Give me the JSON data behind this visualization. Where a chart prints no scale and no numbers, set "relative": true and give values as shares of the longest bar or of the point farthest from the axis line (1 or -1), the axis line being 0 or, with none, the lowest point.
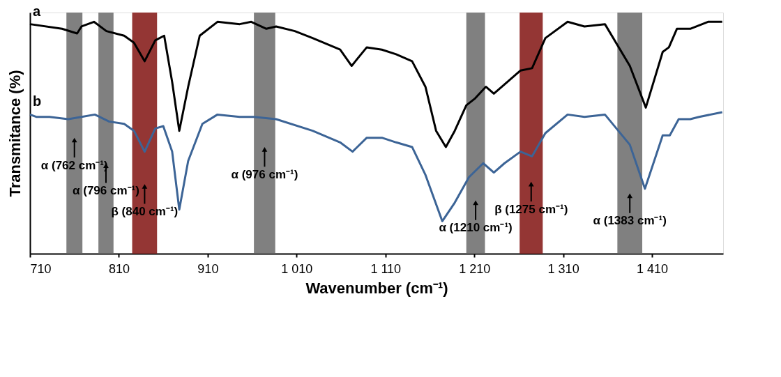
{
  "chart_data": {
    "type": "line",
    "relative": true,
    "xlabel": "Wavenumber (cm⁻¹)",
    "ylabel": "Transmitance (%)",
    "xlim": [
      710,
      1490
    ],
    "xticks": [
      710,
      810,
      910,
      {
        "value": 1010,
        "label": "1 010"
      },
      {
        "value": 1110,
        "label": "1 110"
      },
      {
        "value": 1210,
        "label": "1 210"
      },
      {
        "value": 1310,
        "label": "1 310"
      },
      {
        "value": 1410,
        "label": "1 410"
      }
    ],
    "grid": false,
    "marker": "none",
    "line_style": "solid",
    "series": [
      {
        "name": "a",
        "color": "#000000",
        "x": [
          710,
          746,
          763,
          768,
          782,
          796,
          816,
          827,
          839,
          851,
          861,
          870,
          878,
          888,
          901,
          921,
          946,
          959,
          976,
          987,
          1008,
          1028,
          1059,
          1072,
          1089,
          1106,
          1122,
          1140,
          1155,
          1167,
          1178,
          1188,
          1201,
          1211,
          1223,
          1232,
          1244,
          1262,
          1275,
          1290,
          1315,
          1334,
          1357,
          1385,
          1403,
          1422,
          1429,
          1438,
          1453,
          1473,
          1489
        ],
        "values": [
          0.99,
          0.97,
          0.95,
          0.98,
          1.0,
          0.96,
          0.94,
          0.91,
          0.83,
          0.92,
          0.94,
          0.74,
          0.53,
          0.72,
          0.94,
          1.0,
          0.99,
          1.0,
          0.97,
          0.98,
          0.96,
          0.93,
          0.88,
          0.81,
          0.89,
          0.88,
          0.86,
          0.83,
          0.72,
          0.53,
          0.46,
          0.53,
          0.64,
          0.67,
          0.72,
          0.69,
          0.73,
          0.79,
          0.8,
          0.93,
          1.0,
          0.98,
          0.99,
          0.81,
          0.63,
          0.87,
          0.89,
          0.97,
          0.97,
          1.0,
          1.0
        ]
      },
      {
        "name": "b",
        "color": "#3c6496",
        "x": [
          710,
          717,
          732,
          753,
          768,
          783,
          799,
          816,
          827,
          839,
          851,
          860,
          870,
          878,
          888,
          904,
          921,
          946,
          962,
          987,
          1028,
          1059,
          1073,
          1089,
          1106,
          1122,
          1140,
          1155,
          1174,
          1188,
          1204,
          1220,
          1232,
          1244,
          1262,
          1275,
          1290,
          1315,
          1334,
          1357,
          1385,
          1402,
          1422,
          1430,
          1440,
          1453,
          1463,
          1489
        ],
        "values": [
          0.6,
          0.59,
          0.59,
          0.58,
          0.59,
          0.6,
          0.57,
          0.56,
          0.53,
          0.44,
          0.54,
          0.55,
          0.44,
          0.19,
          0.4,
          0.56,
          0.6,
          0.59,
          0.59,
          0.58,
          0.53,
          0.48,
          0.44,
          0.5,
          0.5,
          0.48,
          0.46,
          0.34,
          0.14,
          0.22,
          0.33,
          0.39,
          0.35,
          0.39,
          0.44,
          0.42,
          0.52,
          0.6,
          0.59,
          0.6,
          0.47,
          0.28,
          0.51,
          0.51,
          0.58,
          0.58,
          0.59,
          0.61
        ]
      }
    ],
    "bands": [
      {
        "axis": "x",
        "from": 751,
        "to": 769,
        "color": "#808080"
      },
      {
        "axis": "x",
        "from": 787,
        "to": 804,
        "color": "#808080"
      },
      {
        "axis": "x",
        "from": 825,
        "to": 853,
        "color": "#943634"
      },
      {
        "axis": "x",
        "from": 962,
        "to": 986,
        "color": "#808080"
      },
      {
        "axis": "x",
        "from": 1201,
        "to": 1222,
        "color": "#808080"
      },
      {
        "axis": "x",
        "from": 1261,
        "to": 1287,
        "color": "#943634"
      },
      {
        "axis": "x",
        "from": 1371,
        "to": 1399,
        "color": "#808080"
      }
    ],
    "annotations": [
      "α (762 cm⁻¹)",
      "α (796 cm⁻¹)",
      "β (840 cm⁻¹)",
      "α (976 cm⁻¹)",
      "α (1210 cm⁻¹)",
      "β (1275 cm⁻¹)",
      "α (1383 cm⁻¹)"
    ]
  }
}
